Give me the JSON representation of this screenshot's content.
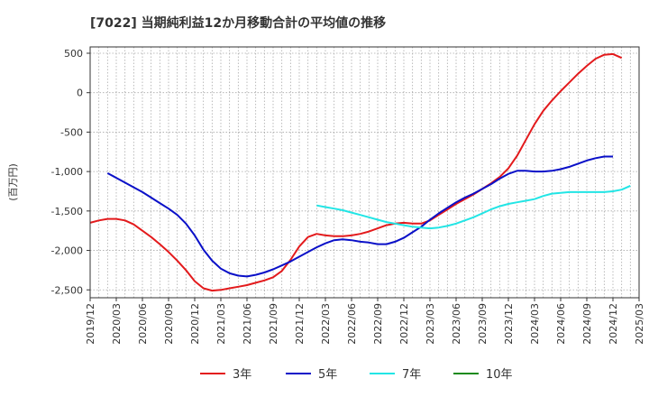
{
  "chart_data": {
    "type": "line",
    "title": "[7022]  当期純利益12か月移動合計の平均値の推移",
    "ylabel": "(百万円)",
    "xlabel": "",
    "ylim": [
      -2600,
      580
    ],
    "grid": true,
    "y_ticks": [
      500,
      0,
      -500,
      -1000,
      -1500,
      -2000,
      -2500
    ],
    "y_tick_labels": [
      "500",
      "0",
      "-500",
      "-1,000",
      "-1,500",
      "-2,000",
      "-2,500"
    ],
    "x_tick_labels": [
      "2019/12",
      "2020/03",
      "2020/06",
      "2020/09",
      "2020/12",
      "2021/03",
      "2021/06",
      "2021/09",
      "2021/12",
      "2022/03",
      "2022/06",
      "2022/09",
      "2022/12",
      "2023/03",
      "2023/06",
      "2023/09",
      "2023/12",
      "2024/03",
      "2024/06",
      "2024/09",
      "2024/12",
      "2025/03"
    ],
    "legend_position": "bottom",
    "series": [
      {
        "name": "3年",
        "color": "#e31a1c",
        "start": "2019/12",
        "values": [
          -1650,
          -1620,
          -1600,
          -1600,
          -1620,
          -1670,
          -1750,
          -1830,
          -1920,
          -2020,
          -2130,
          -2250,
          -2390,
          -2480,
          -2510,
          -2500,
          -2480,
          -2460,
          -2440,
          -2410,
          -2380,
          -2340,
          -2260,
          -2120,
          -1950,
          -1830,
          -1790,
          -1810,
          -1820,
          -1820,
          -1810,
          -1790,
          -1760,
          -1720,
          -1680,
          -1660,
          -1650,
          -1660,
          -1660,
          -1620,
          -1550,
          -1480,
          -1410,
          -1350,
          -1290,
          -1220,
          -1150,
          -1070,
          -960,
          -800,
          -600,
          -400,
          -230,
          -100,
          20,
          130,
          240,
          340,
          430,
          480,
          490,
          440
        ]
      },
      {
        "name": "5年",
        "color": "#0a10c8",
        "start": "2020/02",
        "values": [
          -1020,
          -1080,
          -1140,
          -1200,
          -1260,
          -1330,
          -1400,
          -1470,
          -1550,
          -1660,
          -1810,
          -1990,
          -2130,
          -2230,
          -2290,
          -2320,
          -2330,
          -2310,
          -2280,
          -2240,
          -2190,
          -2140,
          -2080,
          -2020,
          -1960,
          -1910,
          -1870,
          -1860,
          -1870,
          -1890,
          -1900,
          -1920,
          -1920,
          -1890,
          -1840,
          -1770,
          -1700,
          -1610,
          -1530,
          -1460,
          -1390,
          -1330,
          -1280,
          -1220,
          -1160,
          -1090,
          -1030,
          -990,
          -990,
          -1000,
          -1000,
          -990,
          -970,
          -940,
          -900,
          -860,
          -830,
          -810,
          -810
        ]
      },
      {
        "name": "7年",
        "color": "#22e5e5",
        "start": "2022/02",
        "values": [
          -1430,
          -1450,
          -1470,
          -1490,
          -1520,
          -1550,
          -1580,
          -1610,
          -1640,
          -1660,
          -1680,
          -1700,
          -1710,
          -1720,
          -1710,
          -1690,
          -1660,
          -1620,
          -1580,
          -1530,
          -1480,
          -1440,
          -1410,
          -1390,
          -1370,
          -1350,
          -1310,
          -1280,
          -1270,
          -1260,
          -1260,
          -1260,
          -1260,
          -1260,
          -1250,
          -1230,
          -1180
        ]
      },
      {
        "name": "10年",
        "color": "#1a8a1a",
        "start": "2019/12",
        "values": []
      }
    ]
  }
}
